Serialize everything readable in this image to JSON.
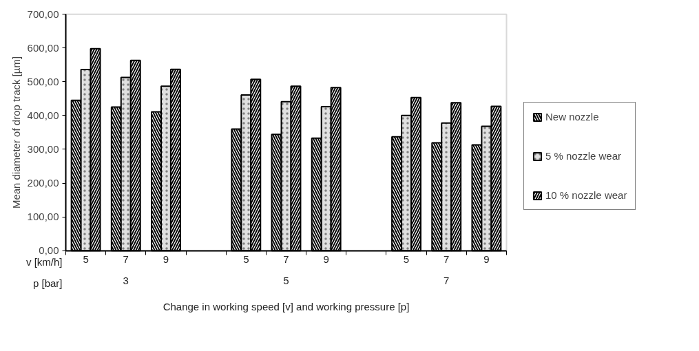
{
  "chart_data": {
    "type": "bar",
    "xlabel": "Change in working speed [v] and working pressure [p]",
    "ylabel": "Mean diameter of drop track [µm]",
    "categories": [
      "5",
      "7",
      "9",
      null,
      "5",
      "7",
      "9",
      null,
      "5",
      "7",
      "9"
    ],
    "series": [
      {
        "name": "New nozzle",
        "color": "#000000",
        "values": [
          445,
          425,
          411,
          null,
          360,
          344,
          333,
          null,
          337,
          319,
          313
        ]
      },
      {
        "name": "5 % nozzle wear",
        "color": "#e0e0e0",
        "values": [
          536,
          513,
          487,
          null,
          461,
          441,
          426,
          null,
          400,
          378,
          368
        ]
      },
      {
        "name": "10 % nozzle wear",
        "color": "#000000",
        "values": [
          598,
          563,
          537,
          null,
          507,
          487,
          483,
          null,
          453,
          438,
          427
        ]
      }
    ],
    "ylim": [
      0,
      700
    ],
    "yticks": [
      {
        "value": 0,
        "label": "0,00"
      },
      {
        "value": 100,
        "label": "100,00"
      },
      {
        "value": 200,
        "label": "200,00"
      },
      {
        "value": 300,
        "label": "300,00"
      },
      {
        "value": 400,
        "label": "400,00"
      },
      {
        "value": 500,
        "label": "500,00"
      },
      {
        "value": 600,
        "label": "600,00"
      },
      {
        "value": 700,
        "label": "700,00"
      }
    ],
    "annotations": [
      "v [km/h]",
      "p [bar]",
      "3",
      "5",
      "7"
    ],
    "grid": false,
    "legend": "right"
  }
}
